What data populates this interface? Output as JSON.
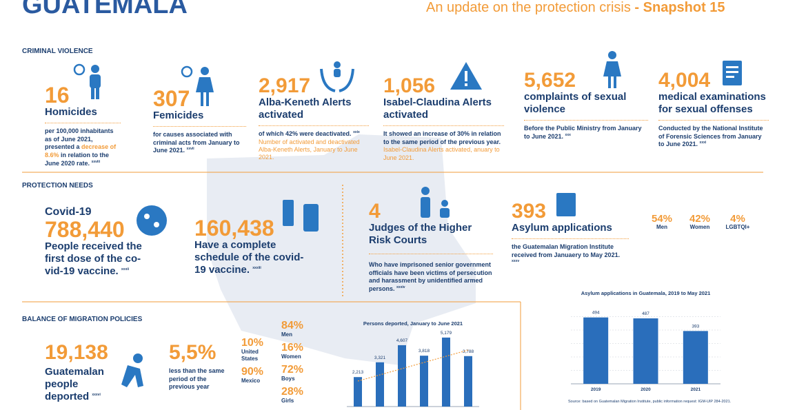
{
  "header": {
    "title": "GUATEMALA",
    "subtitle": "An update on the protection crisis",
    "snapshot": "- Snapshot 15"
  },
  "criminal_violence": {
    "heading": "CRIMINAL VIOLENCE",
    "items": [
      {
        "number": "16",
        "label": "Homicides",
        "text": "per 100,000 inhabitants as of June 2021, presented a",
        "highlight": "decrease of 8.6%",
        "text_end": "in relation to the June 2020 rate.",
        "note": "xxviii"
      },
      {
        "number": "307",
        "label": "Femicides",
        "text": "for causes associated with criminal acts from January to June 2021.",
        "note": "xxvii"
      },
      {
        "number": "2,917",
        "label": "Alba-Keneth Alerts activated",
        "text": "of which 42% were deactivated.",
        "source": "Number of activated and deactivated Alba-Keneth Alerts, January to June 2021.",
        "note": "xxix"
      },
      {
        "number": "1,056",
        "label": "Isabel-Claudina Alerts activated",
        "text": "It showed an increase of 30% in relation to the same period of the previous year.",
        "source": "Isabel-Claudina Alerts activated, anuary to June 2021."
      },
      {
        "number": "5,652",
        "label": "complaints of sexual violence",
        "text": "Before the Public Ministry from January to June 2021.",
        "note": "xxx"
      },
      {
        "number": "4,004",
        "label": "medical examinations for sexual offenses",
        "text": "Conducted by the National Institute of Forensic Sciences from January to June 2021.",
        "note": "xxxi"
      }
    ]
  },
  "protection_needs": {
    "heading": "PROTECTION NEEDS",
    "covid": {
      "title": "Covid-19",
      "number": "788,440",
      "text": "People received the first dose of the co-vid-19 vaccine.",
      "note": "xxxii"
    },
    "complete": {
      "number": "160,438",
      "text": "Have a complete schedule of the covid-19 vaccine.",
      "note": "xxxiii"
    },
    "judges": {
      "number": "4",
      "label": "Judges of the Higher Risk Courts",
      "text": "Who have imprisoned senior government officials have been victims of persecution and harassment by unidentified armed persons.",
      "note": "xxxiv"
    },
    "asylum": {
      "number": "393",
      "label": "Asylum applications",
      "text": "the Guatemalan Migration Institute received from Januaery to May 2021.",
      "note": "xxxv"
    },
    "asylum_split": [
      {
        "value": "54%",
        "label": "Men"
      },
      {
        "value": "42%",
        "label": "Women"
      },
      {
        "value": "4%",
        "label": "LGBTQI+"
      }
    ]
  },
  "migration": {
    "heading": "BALANCE OF MIGRATION POLICIES",
    "deported": {
      "number": "19,138",
      "text": "Guatemalan people deported",
      "note": "xxxvi"
    },
    "change": {
      "number": "5,5%",
      "text": "less than the same period of the previous year"
    },
    "origin": [
      {
        "value": "10%",
        "label": "United States"
      },
      {
        "value": "90%",
        "label": "Mexico"
      }
    ],
    "profile": [
      {
        "value": "84%",
        "label": "Men"
      },
      {
        "value": "16%",
        "label": "Women"
      },
      {
        "value": "72%",
        "label": "Boys"
      },
      {
        "value": "28%",
        "label": "Girls"
      }
    ]
  },
  "deported_chart": {
    "type": "bar",
    "title": "Persons deported, January to June 2021",
    "color": "#2a6ebb",
    "values": [
      2213,
      3321,
      4607,
      3818,
      5179,
      3788
    ],
    "value_labels": [
      "2,213",
      "3,321",
      "4,607",
      "3,818",
      "5,179",
      "3,788"
    ],
    "ylim": [
      0,
      6000
    ]
  },
  "asylum_chart": {
    "type": "bar",
    "title": "Asylum applications in Guatemala, 2019 to May 2021",
    "color": "#2a6ebb",
    "categories": [
      "2019",
      "2020",
      "2021"
    ],
    "values": [
      494,
      487,
      393
    ],
    "ylim": [
      0,
      600
    ],
    "grid": true,
    "source": "Source: based on Guatemalan Migration Institute, public information request: IGM-UIP 284-2021."
  }
}
